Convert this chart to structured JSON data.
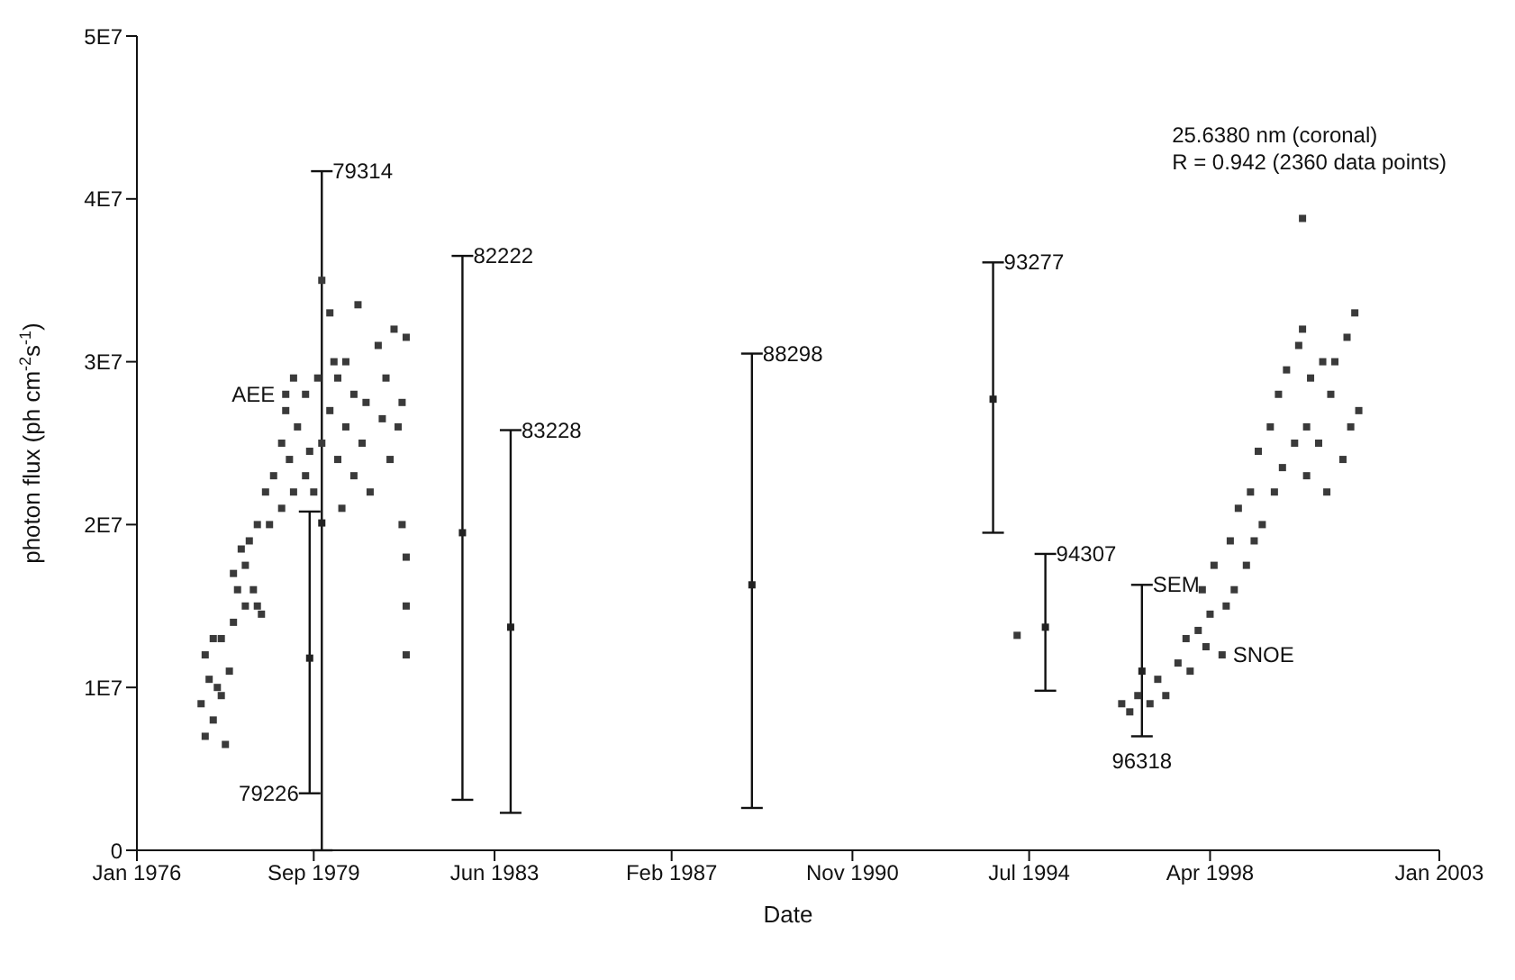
{
  "chart_data": {
    "type": "scatter",
    "xlabel": "Date",
    "ylabel": "photon flux (ph cm$^{-2}$s$^{-1}$)",
    "xlim": [
      "1976-01-01",
      "2003-01-01"
    ],
    "xticks": [
      {
        "value": "1976-01-01",
        "label": "Jan 1976"
      },
      {
        "value": "1979-09-01",
        "label": "Sep 1979"
      },
      {
        "value": "1983-06-01",
        "label": "Jun 1983"
      },
      {
        "value": "1987-02-01",
        "label": "Feb 1987"
      },
      {
        "value": "1990-11-01",
        "label": "Nov 1990"
      },
      {
        "value": "1994-07-01",
        "label": "Jul 1994"
      },
      {
        "value": "1998-04-01",
        "label": "Apr 1998"
      },
      {
        "value": "2003-01-01",
        "label": "Jan 2003"
      }
    ],
    "ylim": [
      0,
      50000000
    ],
    "yticks": [
      0,
      {
        "value": 10000000,
        "label": "1E7"
      },
      {
        "value": 20000000,
        "label": "2E7"
      },
      {
        "value": 30000000,
        "label": "3E7"
      },
      {
        "value": 40000000,
        "label": "4E7"
      },
      {
        "value": 50000000,
        "label": "5E7"
      }
    ],
    "marker": "square",
    "series": [
      {
        "color": "#3a3a3a",
        "x": [
          "1977-05",
          "1977-06",
          "1977-06",
          "1977-07",
          "1977-08",
          "1977-08",
          "1977-09",
          "1977-10",
          "1977-10",
          "1977-11",
          "1977-12",
          "1978-01",
          "1978-01",
          "1978-02",
          "1978-03",
          "1978-04",
          "1978-04",
          "1978-05",
          "1978-06",
          "1978-07",
          "1978-07",
          "1978-08",
          "1978-09",
          "1978-10",
          "1978-11",
          "1979-01",
          "1979-01",
          "1979-02",
          "1979-02",
          "1979-03",
          "1979-04",
          "1979-04",
          "1979-05",
          "1979-07",
          "1979-07",
          "1979-08",
          "1979-09",
          "1979-10",
          "1979-11",
          "1979-11",
          "1980-01",
          "1980-01",
          "1980-02",
          "1980-03",
          "1980-03",
          "1980-04",
          "1980-05",
          "1980-05",
          "1980-07",
          "1980-07",
          "1980-08",
          "1980-09",
          "1980-10",
          "1980-11",
          "1981-01",
          "1981-02",
          "1981-03",
          "1981-04",
          "1981-05",
          "1981-06",
          "1981-07",
          "1981-07",
          "1981-08",
          "1981-08",
          "1981-08",
          "1981-08",
          "1994-04",
          "1996-06",
          "1996-08",
          "1996-10",
          "1997-01",
          "1997-03",
          "1997-05",
          "1997-08",
          "1997-10",
          "1997-11",
          "1998-01",
          "1998-02",
          "1998-03",
          "1998-04",
          "1998-05",
          "1998-07",
          "1998-08",
          "1998-09",
          "1998-10",
          "1998-11",
          "1999-01",
          "1999-02",
          "1999-03",
          "1999-04",
          "1999-05",
          "1999-07",
          "1999-08",
          "1999-09",
          "1999-10",
          "1999-11",
          "2000-01",
          "2000-02",
          "2000-03",
          "2000-03",
          "2000-04",
          "2000-04",
          "2000-05",
          "2000-07",
          "2000-08",
          "2000-09",
          "2000-10",
          "2000-11",
          "2001-01",
          "2001-02",
          "2001-03",
          "2001-04",
          "2001-05"
        ],
        "values": [
          9000000,
          12000000,
          7000000,
          10500000,
          8000000,
          13000000,
          10000000,
          9500000,
          13000000,
          6500000,
          11000000,
          14000000,
          17000000,
          16000000,
          18500000,
          15000000,
          17500000,
          19000000,
          16000000,
          20000000,
          15000000,
          14500000,
          22000000,
          20000000,
          23000000,
          25000000,
          21000000,
          27000000,
          28000000,
          24000000,
          29000000,
          22000000,
          26000000,
          23000000,
          28000000,
          24500000,
          22000000,
          29000000,
          35000000,
          25000000,
          33000000,
          27000000,
          30000000,
          24000000,
          29000000,
          21000000,
          26000000,
          30000000,
          28000000,
          23000000,
          33500000,
          25000000,
          27500000,
          22000000,
          31000000,
          26500000,
          29000000,
          24000000,
          32000000,
          26000000,
          20000000,
          27500000,
          18000000,
          31500000,
          15000000,
          12000000,
          13200000,
          9000000,
          8500000,
          9500000,
          9000000,
          10500000,
          9500000,
          11500000,
          13000000,
          11000000,
          13500000,
          16000000,
          12500000,
          14500000,
          17500000,
          12000000,
          15000000,
          19000000,
          16000000,
          21000000,
          17500000,
          22000000,
          19000000,
          24500000,
          20000000,
          26000000,
          22000000,
          28000000,
          23500000,
          29500000,
          25000000,
          31000000,
          38800000,
          32000000,
          26000000,
          23000000,
          29000000,
          25000000,
          30000000,
          22000000,
          28000000,
          30000000,
          24000000,
          31500000,
          26000000,
          33000000,
          27000000
        ]
      },
      {
        "color": "#222222",
        "x": [
          "1979-08",
          "1979-11",
          "1982-10",
          "1983-10",
          "1988-10",
          "1993-10",
          "1994-11",
          "1996-11"
        ],
        "values": [
          11800000,
          20100000,
          19500000,
          13700000,
          16300000,
          27700000,
          13700000,
          11000000
        ],
        "errors": [
          [
            3500000,
            20800000
          ],
          [
            0,
            41700000
          ],
          [
            3100000,
            36500000
          ],
          [
            2300000,
            25800000
          ],
          [
            2600000,
            30500000
          ],
          [
            19500000,
            36100000
          ],
          [
            9800000,
            18200000
          ],
          [
            7000000,
            16300000
          ]
        ]
      }
    ],
    "annotations": [
      "25.6380 nm (coronal)",
      "R = 0.942 (2360 data points)",
      {
        "text": "AEE",
        "x": "1979-02",
        "y": 28000000
      },
      {
        "text": "79226",
        "x": "1979-08",
        "y": 3500000
      },
      {
        "text": "79314",
        "x": "1979-11",
        "y": 41700000
      },
      {
        "text": "82222",
        "x": "1982-10",
        "y": 36500000
      },
      {
        "text": "83228",
        "x": "1983-10",
        "y": 25800000
      },
      {
        "text": "88298",
        "x": "1988-10",
        "y": 30500000
      },
      {
        "text": "93277",
        "x": "1993-10",
        "y": 36100000
      },
      {
        "text": "94307",
        "x": "1994-11",
        "y": 18200000
      },
      {
        "text": "SEM",
        "x": "1996-11",
        "y": 16300000
      },
      {
        "text": "SNOE",
        "x": "1998-07",
        "y": 12000000
      },
      {
        "text": "96318",
        "x": "1996-11",
        "y": 7000000
      }
    ]
  }
}
